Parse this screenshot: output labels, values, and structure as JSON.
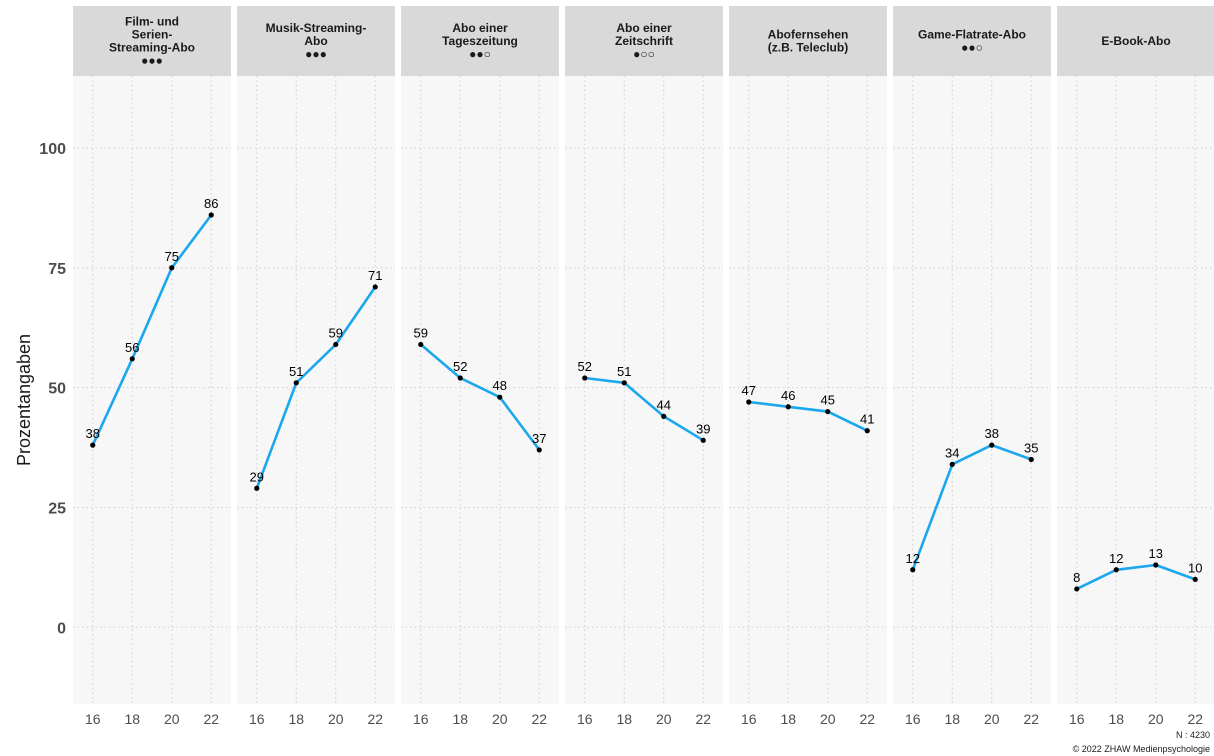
{
  "chart_data": {
    "type": "line",
    "ylabel": "Prozentangaben",
    "ylim": [
      -16,
      115
    ],
    "y_ticks": [
      0,
      25,
      50,
      75,
      100
    ],
    "x_ticks": [
      16,
      18,
      20,
      22
    ],
    "grid": true,
    "colors": {
      "line": "#1aa7ee",
      "point": "#000000",
      "panel_bg": "#f7f7f7",
      "strip_bg": "#d9d9d9",
      "grid": "#d0d0d0"
    },
    "panels": [
      {
        "title": [
          "Film- und",
          "Serien-",
          "Streaming-Abo",
          "●●●"
        ],
        "x": [
          16,
          18,
          20,
          22
        ],
        "values": [
          38,
          56,
          75,
          86
        ],
        "labels": [
          "38",
          "56",
          "75",
          "86"
        ]
      },
      {
        "title": [
          "Musik-Streaming-",
          "Abo",
          "●●●"
        ],
        "x": [
          16,
          18,
          20,
          22
        ],
        "values": [
          29,
          51,
          59,
          71
        ],
        "labels": [
          "29",
          "51",
          "59",
          "71"
        ]
      },
      {
        "title": [
          "Abo einer",
          "Tageszeitung",
          "●●○"
        ],
        "x": [
          16,
          18,
          20,
          22
        ],
        "values": [
          59,
          52,
          48,
          37
        ],
        "labels": [
          "59",
          "52",
          "48",
          "37"
        ]
      },
      {
        "title": [
          "Abo einer",
          "Zeitschrift",
          "●○○"
        ],
        "x": [
          16,
          18,
          20,
          22
        ],
        "values": [
          52,
          51,
          44,
          39
        ],
        "labels": [
          "52",
          "51",
          "44",
          "39"
        ]
      },
      {
        "title": [
          "Abofernsehen",
          "(z.B. Teleclub)"
        ],
        "x": [
          16,
          18,
          20,
          22
        ],
        "values": [
          47,
          46,
          45,
          41
        ],
        "labels": [
          "47",
          "46",
          "45",
          "41"
        ]
      },
      {
        "title": [
          "Game-Flatrate-Abo",
          "●●○"
        ],
        "x": [
          16,
          18,
          20,
          22
        ],
        "values": [
          12,
          34,
          38,
          35
        ],
        "labels": [
          "12",
          "34",
          "38",
          "35"
        ]
      },
      {
        "title": [
          "E-Book-Abo"
        ],
        "x": [
          16,
          18,
          20,
          22
        ],
        "values": [
          8,
          12,
          13,
          10
        ],
        "labels": [
          "8",
          "12",
          "13",
          "10"
        ]
      }
    ]
  },
  "caption": {
    "n": "N : 4230",
    "copyright": "© 2022 ZHAW Medienpsychologie"
  }
}
